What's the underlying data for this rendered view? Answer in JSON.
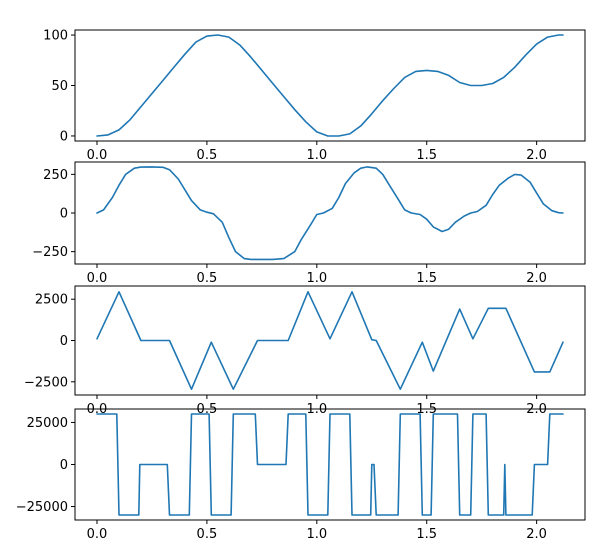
{
  "chart_data": [
    {
      "type": "line",
      "xlim": [
        -0.1,
        2.22
      ],
      "ylim": [
        -5,
        105
      ],
      "xticks": [
        "0.0",
        "0.5",
        "1.0",
        "1.5",
        "2.0"
      ],
      "yticks": [
        "0",
        "50",
        "100"
      ],
      "grid": false,
      "color": "#1f77b4",
      "series": [
        {
          "x": [
            0.0,
            0.05,
            0.1,
            0.15,
            0.2,
            0.25,
            0.3,
            0.35,
            0.4,
            0.45,
            0.5,
            0.55,
            0.6,
            0.65,
            0.7,
            0.75,
            0.8,
            0.85,
            0.9,
            0.95,
            1.0,
            1.05,
            1.1,
            1.15,
            1.2,
            1.25,
            1.3,
            1.35,
            1.4,
            1.45,
            1.5,
            1.55,
            1.6,
            1.65,
            1.7,
            1.75,
            1.8,
            1.85,
            1.9,
            1.95,
            2.0,
            2.05,
            2.1,
            2.12
          ],
          "y": [
            0,
            1,
            6,
            16,
            29,
            42,
            55,
            68,
            81,
            93,
            99,
            100,
            98,
            90,
            78,
            65,
            52,
            39,
            26,
            14,
            4,
            0,
            0,
            2,
            10,
            22,
            35,
            47,
            58,
            64,
            65,
            64,
            60,
            53,
            50,
            50,
            52,
            58,
            68,
            80,
            91,
            98,
            100,
            100
          ]
        }
      ]
    },
    {
      "type": "line",
      "xlim": [
        -0.1,
        2.22
      ],
      "ylim": [
        -330,
        330
      ],
      "xticks": [
        "0.0",
        "0.5",
        "1.0",
        "1.5",
        "2.0"
      ],
      "yticks": [
        "250",
        "0",
        "−250"
      ],
      "ytick_values": [
        250,
        0,
        -250
      ],
      "grid": false,
      "color": "#1f77b4",
      "series": [
        {
          "x": [
            0.0,
            0.03,
            0.07,
            0.1,
            0.13,
            0.17,
            0.2,
            0.25,
            0.3,
            0.33,
            0.37,
            0.4,
            0.43,
            0.47,
            0.5,
            0.53,
            0.57,
            0.6,
            0.63,
            0.67,
            0.7,
            0.75,
            0.8,
            0.85,
            0.9,
            0.93,
            0.97,
            1.0,
            1.03,
            1.07,
            1.1,
            1.13,
            1.17,
            1.2,
            1.23,
            1.27,
            1.3,
            1.33,
            1.37,
            1.4,
            1.43,
            1.47,
            1.5,
            1.53,
            1.57,
            1.6,
            1.63,
            1.67,
            1.7,
            1.73,
            1.77,
            1.8,
            1.83,
            1.87,
            1.9,
            1.93,
            1.97,
            2.0,
            2.03,
            2.07,
            2.1,
            2.12
          ],
          "y": [
            0,
            20,
            100,
            180,
            250,
            290,
            297,
            298,
            296,
            280,
            220,
            150,
            80,
            20,
            5,
            -5,
            -60,
            -160,
            -250,
            -295,
            -300,
            -300,
            -300,
            -295,
            -250,
            -170,
            -80,
            -10,
            0,
            30,
            100,
            190,
            260,
            290,
            298,
            290,
            250,
            180,
            90,
            20,
            0,
            -10,
            -40,
            -90,
            -120,
            -105,
            -60,
            -20,
            0,
            10,
            50,
            120,
            180,
            225,
            250,
            245,
            200,
            130,
            60,
            15,
            2,
            0
          ]
        }
      ]
    },
    {
      "type": "line",
      "xlim": [
        -0.1,
        2.22
      ],
      "ylim": [
        -3300,
        3300
      ],
      "xticks": [
        "0.0",
        "0.5",
        "1.0",
        "1.5",
        "2.0"
      ],
      "yticks": [
        "2500",
        "0",
        "−2500"
      ],
      "ytick_values": [
        2500,
        0,
        -2500
      ],
      "grid": false,
      "color": "#1f77b4",
      "series": [
        {
          "x": [
            0.0,
            0.1,
            0.2,
            0.33,
            0.43,
            0.52,
            0.62,
            0.73,
            0.87,
            0.96,
            1.06,
            1.16,
            1.25,
            1.27,
            1.38,
            1.48,
            1.53,
            1.65,
            1.71,
            1.78,
            1.86,
            1.99,
            2.06,
            2.12
          ],
          "y": [
            100,
            2950,
            0,
            0,
            -2950,
            -100,
            -2950,
            0,
            0,
            2950,
            100,
            2950,
            50,
            0,
            -2950,
            -100,
            -1850,
            1900,
            100,
            1950,
            1950,
            -1900,
            -1900,
            -100
          ]
        }
      ]
    },
    {
      "type": "line",
      "xlim": [
        -0.1,
        2.22
      ],
      "ylim": [
        -33000,
        33000
      ],
      "xticks": [
        "0.0",
        "0.5",
        "1.0",
        "1.5",
        "2.0"
      ],
      "yticks": [
        "25000",
        "0",
        "−25000"
      ],
      "ytick_values": [
        25000,
        0,
        -25000
      ],
      "grid": false,
      "color": "#1f77b4",
      "series": [
        {
          "x": [
            0.0,
            0.09,
            0.095,
            0.1,
            0.19,
            0.195,
            0.2,
            0.32,
            0.325,
            0.33,
            0.42,
            0.425,
            0.43,
            0.51,
            0.515,
            0.52,
            0.61,
            0.615,
            0.62,
            0.72,
            0.725,
            0.73,
            0.86,
            0.865,
            0.87,
            0.95,
            0.955,
            0.96,
            1.05,
            1.055,
            1.06,
            1.15,
            1.155,
            1.16,
            1.245,
            1.25,
            1.26,
            1.265,
            1.27,
            1.37,
            1.375,
            1.38,
            1.47,
            1.475,
            1.48,
            1.52,
            1.525,
            1.53,
            1.64,
            1.645,
            1.65,
            1.7,
            1.705,
            1.71,
            1.77,
            1.775,
            1.78,
            1.85,
            1.855,
            1.86,
            1.98,
            1.985,
            1.99,
            2.05,
            2.055,
            2.06,
            2.12
          ],
          "y": [
            30000,
            30000,
            0,
            -30000,
            -30000,
            0,
            0,
            0,
            -15000,
            -30000,
            -30000,
            0,
            30000,
            30000,
            0,
            -30000,
            -30000,
            0,
            30000,
            30000,
            15000,
            0,
            0,
            15000,
            30000,
            30000,
            0,
            -30000,
            -30000,
            0,
            30000,
            30000,
            0,
            -30000,
            -30000,
            0,
            0,
            -15000,
            -30000,
            -30000,
            0,
            30000,
            30000,
            0,
            -30000,
            -30000,
            0,
            30000,
            30000,
            0,
            -30000,
            -30000,
            0,
            30000,
            30000,
            0,
            -30000,
            -30000,
            0,
            -30000,
            -30000,
            -15000,
            0,
            0,
            15000,
            30000,
            30000
          ]
        }
      ]
    }
  ]
}
